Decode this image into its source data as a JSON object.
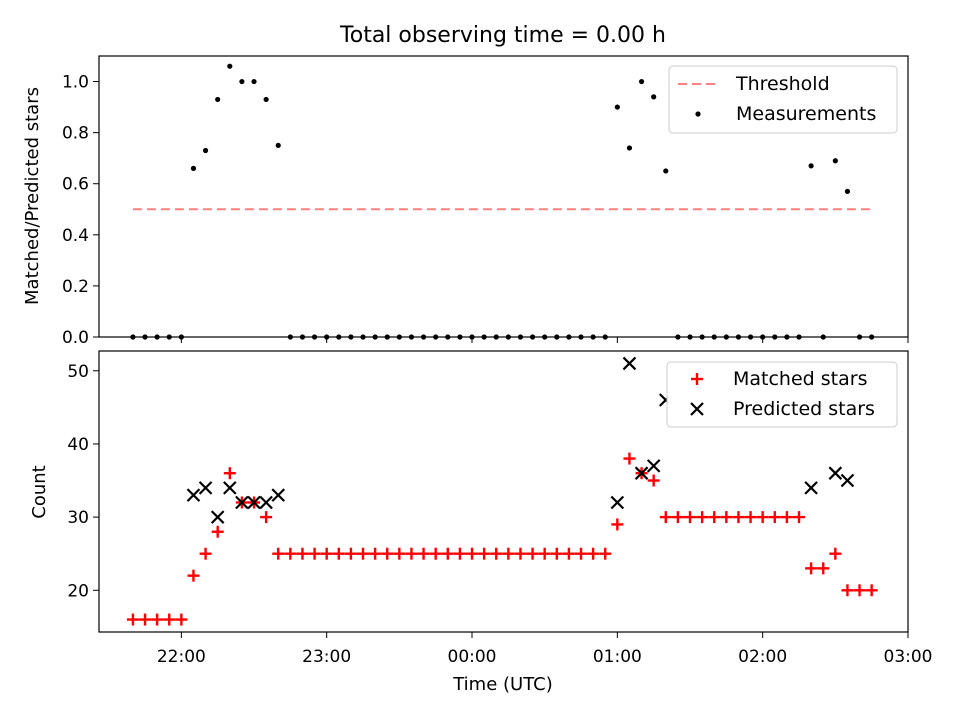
{
  "chart_data": [
    {
      "type": "scatter",
      "title": "Total observing time = 0.00 h",
      "xlabel": "",
      "ylabel": "Matched/Predicted stars",
      "ylim": [
        0,
        1.1
      ],
      "yticks": [
        "0.0",
        "0.2",
        "0.4",
        "0.6",
        "0.8",
        "1.0"
      ],
      "legend_placement": "top-right",
      "threshold": {
        "name": "Threshold",
        "value": 0.5,
        "x_start": "21:40",
        "x_end": "02:45",
        "color": "#ff8080"
      },
      "series": [
        {
          "name": "Measurements",
          "color": "#000000",
          "points": [
            [
              "21:40",
              0
            ],
            [
              "21:45",
              0
            ],
            [
              "21:50",
              0
            ],
            [
              "21:55",
              0
            ],
            [
              "22:00",
              0
            ],
            [
              "22:05",
              0.66
            ],
            [
              "22:10",
              0.73
            ],
            [
              "22:15",
              0.93
            ],
            [
              "22:20",
              1.06
            ],
            [
              "22:25",
              1.0
            ],
            [
              "22:30",
              1.0
            ],
            [
              "22:35",
              0.93
            ],
            [
              "22:40",
              0.75
            ],
            [
              "22:45",
              0
            ],
            [
              "22:50",
              0
            ],
            [
              "22:55",
              0
            ],
            [
              "23:00",
              0
            ],
            [
              "23:05",
              0
            ],
            [
              "23:10",
              0
            ],
            [
              "23:15",
              0
            ],
            [
              "23:20",
              0
            ],
            [
              "23:25",
              0
            ],
            [
              "23:30",
              0
            ],
            [
              "23:35",
              0
            ],
            [
              "23:40",
              0
            ],
            [
              "23:45",
              0
            ],
            [
              "23:50",
              0
            ],
            [
              "23:55",
              0
            ],
            [
              "00:00",
              0
            ],
            [
              "00:05",
              0
            ],
            [
              "00:10",
              0
            ],
            [
              "00:15",
              0
            ],
            [
              "00:20",
              0
            ],
            [
              "00:25",
              0
            ],
            [
              "00:30",
              0
            ],
            [
              "00:35",
              0
            ],
            [
              "00:40",
              0
            ],
            [
              "00:45",
              0
            ],
            [
              "00:50",
              0
            ],
            [
              "00:55",
              0
            ],
            [
              "01:00",
              0.9
            ],
            [
              "01:05",
              0.74
            ],
            [
              "01:10",
              1.0
            ],
            [
              "01:15",
              0.94
            ],
            [
              "01:20",
              0.65
            ],
            [
              "01:25",
              0
            ],
            [
              "01:30",
              0
            ],
            [
              "01:35",
              0
            ],
            [
              "01:40",
              0
            ],
            [
              "01:45",
              0
            ],
            [
              "01:50",
              0
            ],
            [
              "01:55",
              0
            ],
            [
              "02:00",
              0
            ],
            [
              "02:05",
              0
            ],
            [
              "02:10",
              0
            ],
            [
              "02:15",
              0
            ],
            [
              "02:20",
              0.67
            ],
            [
              "02:25",
              0
            ],
            [
              "02:30",
              0.69
            ],
            [
              "02:35",
              0.57
            ],
            [
              "02:40",
              0
            ],
            [
              "02:45",
              0
            ]
          ]
        }
      ]
    },
    {
      "type": "scatter",
      "title": "",
      "xlabel": "Time (UTC)",
      "ylabel": "Count",
      "ylim": [
        14.3,
        52.7
      ],
      "yticks": [
        "20",
        "30",
        "40",
        "50"
      ],
      "xlim": [
        "21:26",
        "03:00"
      ],
      "xticks": [
        "22:00",
        "23:00",
        "00:00",
        "01:00",
        "02:00",
        "03:00"
      ],
      "legend_placement": "top-right",
      "series": [
        {
          "name": "Matched stars",
          "marker": "+",
          "color": "#ff0000",
          "points": [
            [
              "21:40",
              16
            ],
            [
              "21:45",
              16
            ],
            [
              "21:50",
              16
            ],
            [
              "21:55",
              16
            ],
            [
              "22:00",
              16
            ],
            [
              "22:05",
              22
            ],
            [
              "22:10",
              25
            ],
            [
              "22:15",
              28
            ],
            [
              "22:20",
              36
            ],
            [
              "22:25",
              32
            ],
            [
              "22:30",
              32
            ],
            [
              "22:35",
              30
            ],
            [
              "22:40",
              25
            ],
            [
              "22:45",
              25
            ],
            [
              "22:50",
              25
            ],
            [
              "22:55",
              25
            ],
            [
              "23:00",
              25
            ],
            [
              "23:05",
              25
            ],
            [
              "23:10",
              25
            ],
            [
              "23:15",
              25
            ],
            [
              "23:20",
              25
            ],
            [
              "23:25",
              25
            ],
            [
              "23:30",
              25
            ],
            [
              "23:35",
              25
            ],
            [
              "23:40",
              25
            ],
            [
              "23:45",
              25
            ],
            [
              "23:50",
              25
            ],
            [
              "23:55",
              25
            ],
            [
              "00:00",
              25
            ],
            [
              "00:05",
              25
            ],
            [
              "00:10",
              25
            ],
            [
              "00:15",
              25
            ],
            [
              "00:20",
              25
            ],
            [
              "00:25",
              25
            ],
            [
              "00:30",
              25
            ],
            [
              "00:35",
              25
            ],
            [
              "00:40",
              25
            ],
            [
              "00:45",
              25
            ],
            [
              "00:50",
              25
            ],
            [
              "00:55",
              25
            ],
            [
              "01:00",
              29
            ],
            [
              "01:05",
              38
            ],
            [
              "01:10",
              36
            ],
            [
              "01:15",
              35
            ],
            [
              "01:20",
              30
            ],
            [
              "01:25",
              30
            ],
            [
              "01:30",
              30
            ],
            [
              "01:35",
              30
            ],
            [
              "01:40",
              30
            ],
            [
              "01:45",
              30
            ],
            [
              "01:50",
              30
            ],
            [
              "01:55",
              30
            ],
            [
              "02:00",
              30
            ],
            [
              "02:05",
              30
            ],
            [
              "02:10",
              30
            ],
            [
              "02:15",
              30
            ],
            [
              "02:20",
              23
            ],
            [
              "02:25",
              23
            ],
            [
              "02:30",
              25
            ],
            [
              "02:35",
              20
            ],
            [
              "02:40",
              20
            ],
            [
              "02:45",
              20
            ]
          ]
        },
        {
          "name": "Predicted stars",
          "marker": "x",
          "color": "#000000",
          "points": [
            [
              "22:05",
              33
            ],
            [
              "22:10",
              34
            ],
            [
              "22:15",
              30
            ],
            [
              "22:20",
              34
            ],
            [
              "22:25",
              32
            ],
            [
              "22:30",
              32
            ],
            [
              "22:35",
              32
            ],
            [
              "22:40",
              33
            ],
            [
              "01:00",
              32
            ],
            [
              "01:05",
              51
            ],
            [
              "01:10",
              36
            ],
            [
              "01:15",
              37
            ],
            [
              "01:20",
              46
            ],
            [
              "02:20",
              34
            ],
            [
              "02:30",
              36
            ],
            [
              "02:35",
              35
            ]
          ]
        }
      ]
    }
  ]
}
